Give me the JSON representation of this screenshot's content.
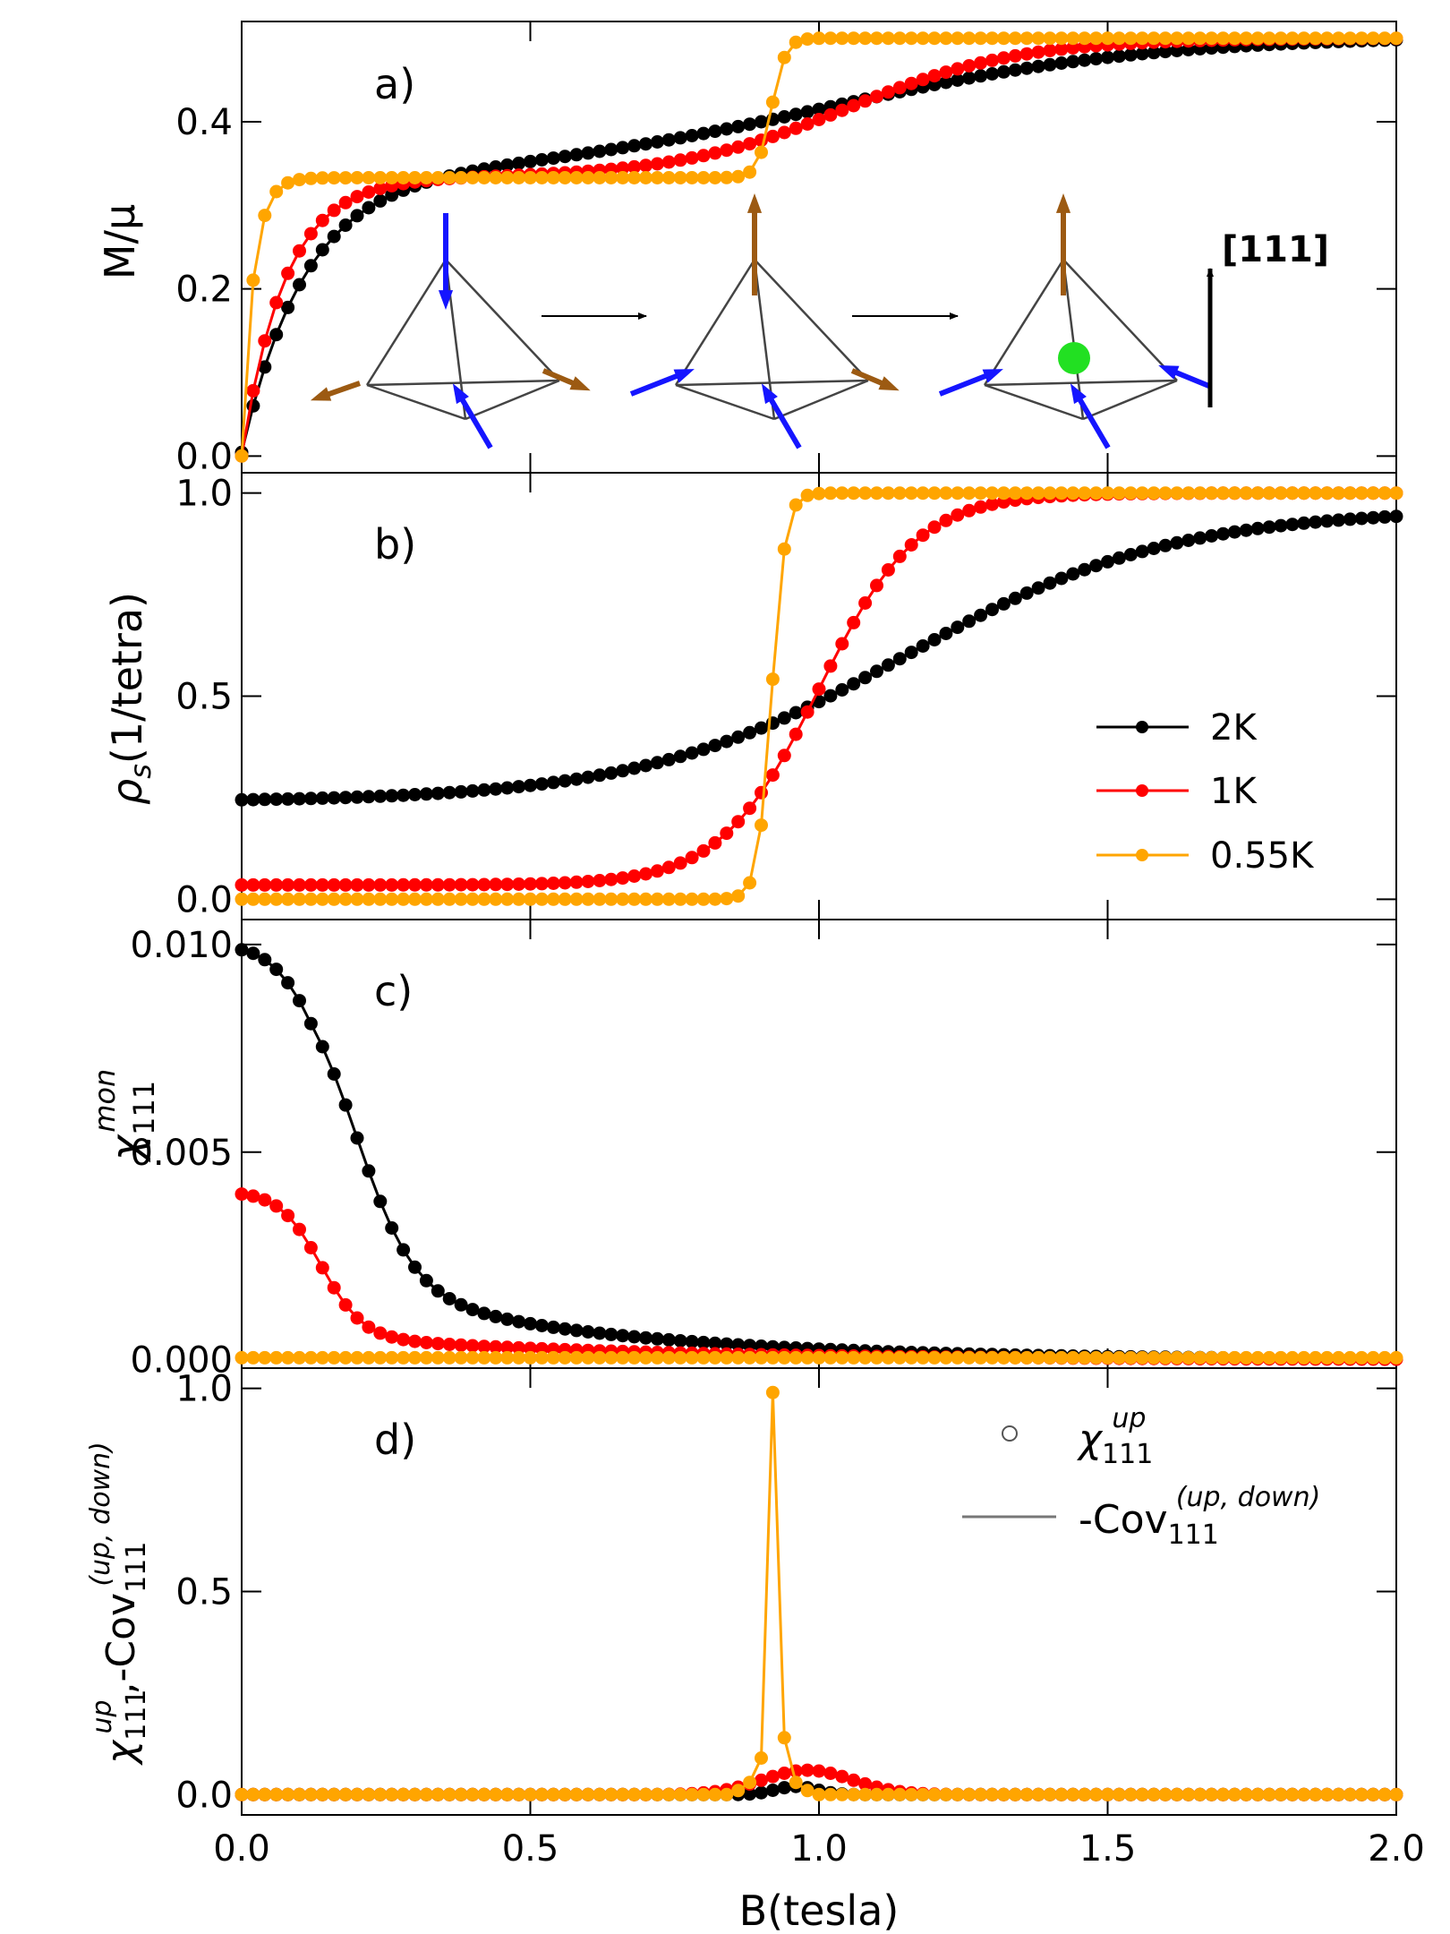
{
  "figure": {
    "xlabel": "B(tesla)",
    "arrow_label": "[111]",
    "legend_panel_b": [
      {
        "label": "2K",
        "color": "#000000"
      },
      {
        "label": "1K",
        "color": "#ff0000"
      },
      {
        "label": "0.55K",
        "color": "#ffa500"
      }
    ],
    "legend_panel_d": [
      {
        "label": "χ",
        "sub": "111",
        "sup": "up",
        "style": "open-circle"
      },
      {
        "label": "-Cov",
        "sub": "111",
        "sup": "(up, down)",
        "style": "line"
      }
    ],
    "colors": {
      "t2K": "#000000",
      "t1K": "#ff0000",
      "t055K": "#ffa500",
      "spin_in": "#1515ff",
      "spin_out": "#9c5a12",
      "monopole": "#22e022"
    }
  },
  "chart_data": [
    {
      "id": "a",
      "type": "line",
      "panel_label": "a)",
      "ylabel": "M/μ",
      "xlim": [
        0,
        2
      ],
      "ylim": [
        -0.02,
        0.52
      ],
      "xticks": [
        0.0,
        0.5,
        1.0,
        1.5,
        2.0
      ],
      "yticks": [
        0.0,
        0.2,
        0.4
      ],
      "ytick_labels": [
        "0.0",
        "0.2",
        "0.4"
      ],
      "x": {
        "start": 0,
        "stop": 2,
        "step": 0.02
      },
      "series": [
        {
          "name": "2K",
          "color": "#000000",
          "model": "magnetization",
          "params": {
            "k": 0.11,
            "plateau": 0.333,
            "center": 1.02,
            "width": 0.28,
            "rise": 0.17
          }
        },
        {
          "name": "1K",
          "color": "#ff0000",
          "model": "magnetization",
          "params": {
            "k": 0.075,
            "plateau": 0.333,
            "center": 1.05,
            "width": 0.15,
            "rise": 0.167
          }
        },
        {
          "name": "0.55K",
          "color": "#ffa500",
          "model": "magnetization",
          "params": {
            "k": 0.02,
            "plateau": 0.333,
            "center": 0.918,
            "width": 0.012,
            "rise": 0.167
          }
        }
      ]
    },
    {
      "id": "b",
      "type": "line",
      "panel_label": "b)",
      "ylabel": "ρs(1/tetra)",
      "xlim": [
        0,
        2
      ],
      "ylim": [
        -0.05,
        1.05
      ],
      "xticks": [
        0.0,
        0.5,
        1.0,
        1.5,
        2.0
      ],
      "yticks": [
        0.0,
        0.5,
        1.0
      ],
      "ytick_labels": [
        "0.0",
        "0.5",
        "1.0"
      ],
      "x": {
        "start": 0,
        "stop": 2,
        "step": 0.02
      },
      "series": [
        {
          "name": "2K",
          "color": "#000000",
          "model": "density",
          "params": {
            "base": 0.24,
            "center": 1.15,
            "width": 0.23,
            "top": 0.96
          }
        },
        {
          "name": "1K",
          "color": "#ff0000",
          "model": "density",
          "params": {
            "base": 0.035,
            "center": 1.0,
            "width": 0.085,
            "top": 1.0
          }
        },
        {
          "name": "0.55K",
          "color": "#ffa500",
          "model": "density",
          "params": {
            "base": 0.0,
            "center": 0.918,
            "width": 0.012,
            "top": 1.0
          }
        }
      ]
    },
    {
      "id": "c",
      "type": "line",
      "panel_label": "c)",
      "ylabel": "χ mon 111",
      "xlim": [
        0,
        2
      ],
      "ylim": [
        -0.0002,
        0.0106
      ],
      "xticks": [
        0.0,
        0.5,
        1.0,
        1.5,
        2.0
      ],
      "yticks": [
        0.0,
        0.005,
        0.01
      ],
      "ytick_labels": [
        "0.000",
        "0.005",
        "0.010"
      ],
      "x": {
        "start": 0,
        "stop": 2,
        "step": 0.02
      },
      "series": [
        {
          "name": "2K",
          "color": "#000000",
          "model": "susceptibility",
          "params": {
            "a": 0.0072,
            "c": 0.2,
            "w": 0.05,
            "b": 0.0028,
            "d": 0.42
          }
        },
        {
          "name": "1K",
          "color": "#ff0000",
          "model": "susceptibility",
          "params": {
            "a": 0.0033,
            "c": 0.14,
            "w": 0.035,
            "b": 0.00075,
            "d": 0.5
          }
        },
        {
          "name": "0.55K",
          "color": "#ffa500",
          "model": "constant",
          "params": {
            "value": 5e-05
          }
        }
      ]
    },
    {
      "id": "d",
      "type": "line",
      "panel_label": "d)",
      "ylabel": "χ up 111, -Cov (up, down) 111",
      "xlim": [
        0,
        2
      ],
      "ylim": [
        -0.05,
        1.05
      ],
      "xticks": [
        0.0,
        0.5,
        1.0,
        1.5,
        2.0
      ],
      "yticks": [
        0.0,
        0.5,
        1.0
      ],
      "ytick_labels": [
        "0.0",
        "0.5",
        "1.0"
      ],
      "xtick_labels": [
        "0.0",
        "0.5",
        "1.0",
        "1.5",
        "2.0"
      ],
      "x": {
        "start": 0,
        "stop": 2,
        "step": 0.02
      },
      "series": [
        {
          "name": "2K",
          "color": "#000000",
          "model": "peak",
          "params": {
            "amp": 0.02,
            "center": 0.96,
            "width": 0.05
          }
        },
        {
          "name": "1K",
          "color": "#ff0000",
          "model": "peak",
          "params": {
            "amp": 0.06,
            "center": 0.98,
            "width": 0.11
          }
        },
        {
          "name": "0.55K",
          "color": "#ffa500",
          "model": "points",
          "points": {
            "0.86": 0.01,
            "0.88": 0.03,
            "0.9": 0.09,
            "0.92": 0.99,
            "0.94": 0.14,
            "0.96": 0.03,
            "0.98": 0.01
          }
        }
      ]
    }
  ]
}
